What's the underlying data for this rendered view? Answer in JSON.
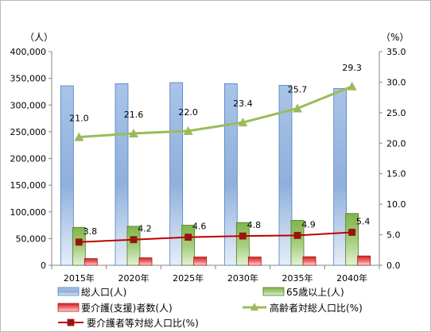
{
  "chart_data": {
    "type": "bar",
    "categories": [
      "2015年",
      "2020年",
      "2025年",
      "2030年",
      "2035年",
      "2040年"
    ],
    "left_axis": {
      "unit": "（人）",
      "ylim": [
        0,
        400000
      ],
      "ticks": [
        "0",
        "50,000",
        "100,000",
        "150,000",
        "200,000",
        "250,000",
        "300,000",
        "350,000",
        "400,000"
      ]
    },
    "right_axis": {
      "unit": "（%）",
      "ylim": [
        0,
        35
      ],
      "ticks": [
        "0.0",
        "5.0",
        "10.0",
        "15.0",
        "20.0",
        "25.0",
        "30.0",
        "35.0"
      ]
    },
    "series": [
      {
        "name": "総人口(人)",
        "kind": "bar",
        "axis": "left",
        "color": "#95b3d7",
        "values": [
          336000,
          340000,
          342000,
          340000,
          337000,
          331000
        ]
      },
      {
        "name": "65歳以上(人)",
        "kind": "bar",
        "axis": "left",
        "color": "#8cc05a",
        "values": [
          71000,
          73000,
          75000,
          80000,
          84000,
          97000
        ]
      },
      {
        "name": "要介護(支援)者数(人)",
        "kind": "bar",
        "axis": "left",
        "color": "#e04040",
        "values": [
          12500,
          14000,
          15500,
          15500,
          16000,
          17500
        ]
      },
      {
        "name": "高齢者対総人口比(%)",
        "kind": "line",
        "axis": "right",
        "color": "#9bbb59",
        "marker": "triangle",
        "values": [
          21.0,
          21.6,
          22.0,
          23.4,
          25.7,
          29.3
        ],
        "labels": [
          "21.0",
          "21.6",
          "22.0",
          "23.4",
          "25.7",
          "29.3"
        ]
      },
      {
        "name": "要介護者等対総人口比(%)",
        "kind": "line",
        "axis": "right",
        "color": "#c00000",
        "marker": "square",
        "values": [
          3.8,
          4.2,
          4.6,
          4.8,
          4.9,
          5.4
        ],
        "labels": [
          "3.8",
          "4.2",
          "4.6",
          "4.8",
          "4.9",
          "5.4"
        ]
      }
    ],
    "grid": false,
    "legend_position": "bottom"
  }
}
